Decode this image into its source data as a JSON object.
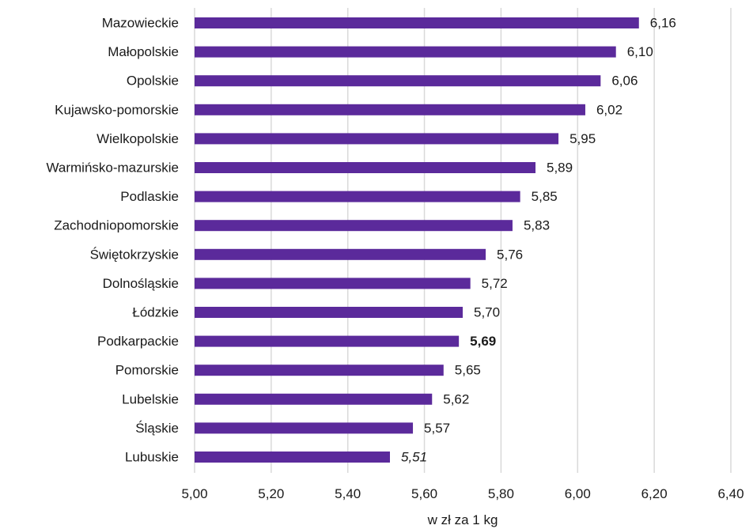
{
  "chart_data": {
    "type": "bar",
    "orientation": "horizontal",
    "title": "",
    "xlabel": "w zł za 1 kg",
    "ylabel": "",
    "xlim": [
      5.0,
      6.4
    ],
    "x_ticks": [
      5.0,
      5.2,
      5.4,
      5.6,
      5.8,
      6.0,
      6.2,
      6.4
    ],
    "x_tick_labels": [
      "5,00",
      "5,20",
      "5,40",
      "5,60",
      "5,80",
      "6,00",
      "6,20",
      "6,40"
    ],
    "grid": "vertical",
    "categories": [
      "Mazowieckie",
      "Małopolskie",
      "Opolskie",
      "Kujawsko-pomorskie",
      "Wielkopolskie",
      "Warmińsko-mazurskie",
      "Podlaskie",
      "Zachodniopomorskie",
      "Świętokrzyskie",
      "Dolnośląskie",
      "Łódzkie",
      "Podkarpackie",
      "Pomorskie",
      "Lubelskie",
      "Śląskie",
      "Lubuskie"
    ],
    "values": [
      6.16,
      6.1,
      6.06,
      6.02,
      5.95,
      5.89,
      5.85,
      5.83,
      5.76,
      5.72,
      5.7,
      5.69,
      5.65,
      5.62,
      5.57,
      5.51
    ],
    "value_labels": [
      "6,16",
      "6,10",
      "6,06",
      "6,02",
      "5,95",
      "5,89",
      "5,85",
      "5,83",
      "5,76",
      "5,72",
      "5,70",
      "5,69",
      "5,65",
      "5,62",
      "5,57",
      "5,51"
    ],
    "highlighted_label": "Podkarpackie",
    "italic_label": "Lubuskie",
    "bar_color": "#5b2a9b",
    "grid_color": "#d9d9d9",
    "text_color": "#1a1a1a"
  }
}
